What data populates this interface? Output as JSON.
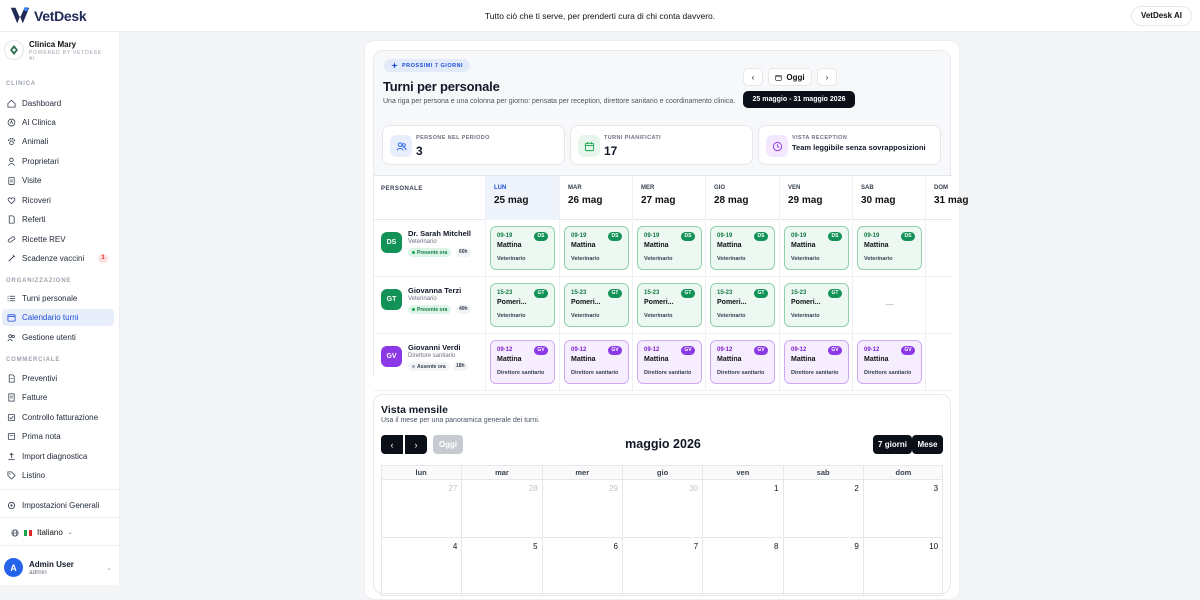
{
  "topbar": {
    "brand": "VetDesk",
    "tagline": "Tutto ciò che ti serve, per prenderti cura di chi conta davvero.",
    "right_button": "VetDesk AI"
  },
  "sidebar": {
    "clinic_name": "Clinica Mary",
    "clinic_sub": "POWERED BY VETDESK AI",
    "sections": {
      "clinica": "CLINICA",
      "organizzazione": "ORGANIZZAZIONE",
      "commerciale": "COMMERCIALE"
    },
    "items": [
      {
        "label": "Dashboard",
        "icon": "home-icon"
      },
      {
        "label": "AI Clinica",
        "icon": "ai-icon"
      },
      {
        "label": "Animali",
        "icon": "paw-icon"
      },
      {
        "label": "Proprietari",
        "icon": "user-icon"
      },
      {
        "label": "Visite",
        "icon": "clipboard-icon"
      },
      {
        "label": "Ricoveri",
        "icon": "heart-icon"
      },
      {
        "label": "Referti",
        "icon": "file-icon"
      },
      {
        "label": "Ricette REV",
        "icon": "pill-icon"
      },
      {
        "label": "Scadenze vaccini",
        "icon": "syringe-icon",
        "badge": "1"
      },
      {
        "label": "Turni personale",
        "icon": "list-icon"
      },
      {
        "label": "Calendario turni",
        "icon": "calendar-icon",
        "active": true
      },
      {
        "label": "Gestione utenti",
        "icon": "users-icon"
      },
      {
        "label": "Preventivi",
        "icon": "document-icon"
      },
      {
        "label": "Fatture",
        "icon": "invoice-icon"
      },
      {
        "label": "Controllo fatturazione",
        "icon": "check-icon"
      },
      {
        "label": "Prima nota",
        "icon": "note-icon"
      },
      {
        "label": "Import diagnostica",
        "icon": "upload-icon"
      },
      {
        "label": "Listino",
        "icon": "tag-icon"
      }
    ],
    "settings": "Impostazioni Generali",
    "language": "Italiano",
    "user_initial": "A",
    "user_name": "Admin User",
    "user_role": "admin"
  },
  "schedule": {
    "pill": "PROSSIMI 7 GIORNI",
    "title": "Turni per personale",
    "subtitle": "Una riga per persona e una colonna per giorno: pensata per reception, direttore sanitario e coordinamento clinica.",
    "today_button": "Oggi",
    "date_range": "25 maggio - 31 maggio 2026",
    "stats": [
      {
        "label": "PERSONE NEL PERIODO",
        "value": "3"
      },
      {
        "label": "TURNI PIANIFICATI",
        "value": "17"
      },
      {
        "label": "VISTA RECEPTION",
        "value": "Team leggibile senza sovrapposizioni"
      }
    ],
    "staff_header": "PERSONALE",
    "days": [
      {
        "day": "LUN",
        "date": "25 mag",
        "today": true
      },
      {
        "day": "MAR",
        "date": "26 mag"
      },
      {
        "day": "MER",
        "date": "27 mag"
      },
      {
        "day": "GIO",
        "date": "28 mag"
      },
      {
        "day": "VEN",
        "date": "29 mag"
      },
      {
        "day": "SAB",
        "date": "30 mag"
      },
      {
        "day": "DOM",
        "date": "31 mag"
      }
    ],
    "staff": [
      {
        "initials": "DS",
        "name": "Dr. Sarah Mitchell",
        "role": "Veterinario",
        "status": "Presente ora",
        "hours": "60h",
        "color": "#139257",
        "tone": "green",
        "shifts": [
          {
            "time": "09-19",
            "name": "Mattina",
            "role": "Veterinario"
          },
          {
            "time": "09-19",
            "name": "Mattina",
            "role": "Veterinario"
          },
          {
            "time": "09-19",
            "name": "Mattina",
            "role": "Veterinario"
          },
          {
            "time": "09-19",
            "name": "Mattina",
            "role": "Veterinario"
          },
          {
            "time": "09-19",
            "name": "Mattina",
            "role": "Veterinario"
          },
          {
            "time": "09-19",
            "name": "Mattina",
            "role": "Veterinario"
          }
        ]
      },
      {
        "initials": "GT",
        "name": "Giovanna Terzi",
        "role": "Veterinario",
        "status": "Presente ora",
        "hours": "40h",
        "color": "#139257",
        "tone": "green",
        "shifts": [
          {
            "time": "15-23",
            "name": "Pomeri...",
            "role": "Veterinario"
          },
          {
            "time": "15-23",
            "name": "Pomeri...",
            "role": "Veterinario"
          },
          {
            "time": "15-23",
            "name": "Pomeri...",
            "role": "Veterinario"
          },
          {
            "time": "15-23",
            "name": "Pomeri...",
            "role": "Veterinario"
          },
          {
            "time": "15-23",
            "name": "Pomeri...",
            "role": "Veterinario"
          },
          {
            "empty": "—"
          }
        ]
      },
      {
        "initials": "GV",
        "name": "Giovanni Verdi",
        "role": "Direttore sanitario",
        "status": "Assente ora",
        "hours": "18h",
        "color": "#8b39e6",
        "tone": "purple",
        "shifts": [
          {
            "time": "09-12",
            "name": "Mattina",
            "role": "Direttore sanitario"
          },
          {
            "time": "09-12",
            "name": "Mattina",
            "role": "Direttore sanitario"
          },
          {
            "time": "09-12",
            "name": "Mattina",
            "role": "Direttore sanitario"
          },
          {
            "time": "09-12",
            "name": "Mattina",
            "role": "Direttore sanitario"
          },
          {
            "time": "09-12",
            "name": "Mattina",
            "role": "Direttore sanitario"
          },
          {
            "time": "09-12",
            "name": "Mattina",
            "role": "Direttore sanitario"
          }
        ]
      }
    ]
  },
  "monthly": {
    "title": "Vista mensile",
    "subtitle": "Usa il mese per una panoramica generale dei turni.",
    "prev": "‹",
    "next": "›",
    "today_button": "Oggi",
    "month_title": "maggio 2026",
    "view_week": "7 giorni",
    "view_month": "Mese",
    "weekdays": [
      "lun",
      "mar",
      "mer",
      "gio",
      "ven",
      "sab",
      "dom"
    ],
    "weeks": [
      [
        {
          "d": "27",
          "muted": true
        },
        {
          "d": "28",
          "muted": true
        },
        {
          "d": "29",
          "muted": true
        },
        {
          "d": "30",
          "muted": true
        },
        {
          "d": "1"
        },
        {
          "d": "2"
        },
        {
          "d": "3"
        }
      ],
      [
        {
          "d": "4"
        },
        {
          "d": "5"
        },
        {
          "d": "6"
        },
        {
          "d": "7"
        },
        {
          "d": "8"
        },
        {
          "d": "9"
        },
        {
          "d": "10"
        }
      ]
    ]
  }
}
